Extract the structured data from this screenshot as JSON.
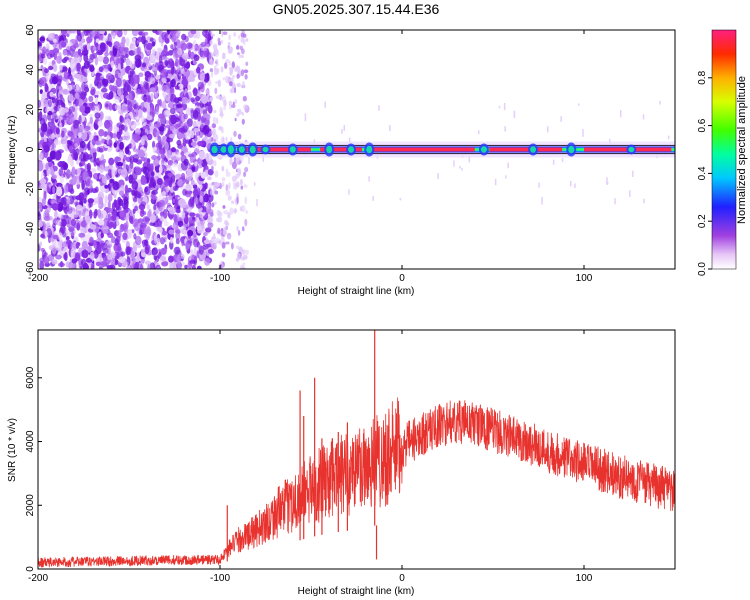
{
  "title": "GN05.2025.307.15.44.E36",
  "colors": {
    "snr_line": "#e8322e",
    "band_core": "#ff2a55",
    "scatter_purple": "#7a20e0"
  },
  "chart_data": [
    {
      "type": "heatmap",
      "xlabel": "Height of straight line (km)",
      "ylabel": "Frequency (Hz)",
      "xlim": [
        -200,
        150
      ],
      "ylim": [
        -60,
        60
      ],
      "xticks": [
        -200,
        -100,
        0,
        100
      ],
      "yticks": [
        -60,
        -40,
        -20,
        0,
        20,
        40,
        60
      ],
      "colorbar": {
        "label": "Normalized spectral amplitude",
        "range": [
          0,
          1
        ],
        "ticks": [
          0.0,
          0.2,
          0.4,
          0.6,
          0.8
        ],
        "colormap": "rainbow"
      },
      "features": {
        "noise_region_x": [
          -200,
          -105
        ],
        "faint_noise_x": [
          -105,
          -85
        ],
        "signal_band_x": [
          -105,
          150
        ],
        "signal_frequency_hz": 0
      }
    },
    {
      "type": "line",
      "xlabel": "Height of straight line (km)",
      "ylabel": "SNR (10 * v/v)",
      "xlim": [
        -200,
        150
      ],
      "ylim": [
        0,
        7500
      ],
      "xticks": [
        -200,
        -100,
        0,
        100
      ],
      "yticks": [
        0,
        2000,
        4000,
        6000
      ],
      "series": [
        {
          "x": [
            -200,
            -150,
            -100,
            -96,
            -90,
            -80,
            -70,
            -60,
            -50,
            -40,
            -30,
            -20,
            -10,
            0,
            10,
            20,
            30,
            40,
            50,
            60,
            70,
            80,
            90,
            100,
            110,
            120,
            130,
            140,
            150
          ],
          "values": [
            200,
            260,
            300,
            600,
            900,
            1200,
            1700,
            2100,
            2500,
            2800,
            3000,
            3300,
            3500,
            3800,
            4200,
            4500,
            4650,
            4550,
            4350,
            4150,
            3950,
            3700,
            3500,
            3300,
            3100,
            2900,
            2750,
            2600,
            2400
          ]
        }
      ],
      "spikes": [
        {
          "x": -96,
          "y": 2000
        },
        {
          "x": -56,
          "y": 5600
        },
        {
          "x": -54,
          "y": 4800
        },
        {
          "x": -48,
          "y": 6000
        },
        {
          "x": -44,
          "y": 4100
        },
        {
          "x": -35,
          "y": 4300
        },
        {
          "x": -30,
          "y": 4600
        },
        {
          "x": -15,
          "y": 7500
        },
        {
          "x": -14,
          "y": 300
        }
      ]
    }
  ]
}
